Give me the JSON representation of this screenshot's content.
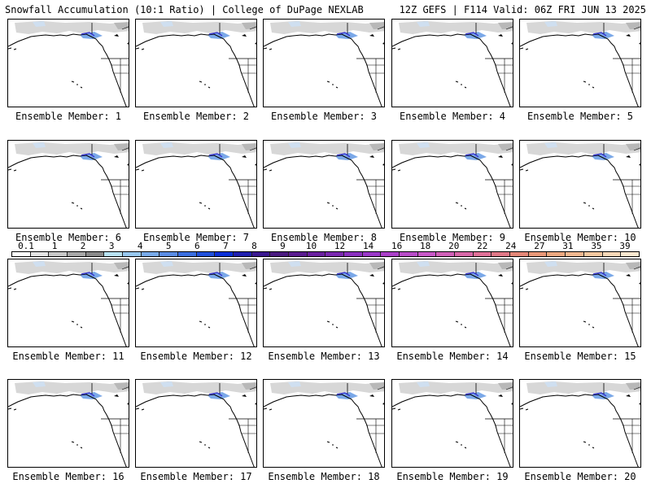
{
  "header": {
    "left": "Snowfall Accumulation (10:1 Ratio) | College of DuPage NEXLAB",
    "right": "12Z GEFS | F114 Valid: 06Z FRI JUN 13 2025"
  },
  "panels": [
    {
      "label": "Ensemble Member: 1"
    },
    {
      "label": "Ensemble Member: 2"
    },
    {
      "label": "Ensemble Member: 3"
    },
    {
      "label": "Ensemble Member: 4"
    },
    {
      "label": "Ensemble Member: 5"
    },
    {
      "label": "Ensemble Member: 6"
    },
    {
      "label": "Ensemble Member: 7"
    },
    {
      "label": "Ensemble Member: 8"
    },
    {
      "label": "Ensemble Member: 9"
    },
    {
      "label": "Ensemble Member: 10"
    },
    {
      "label": "Ensemble Member: 11"
    },
    {
      "label": "Ensemble Member: 12"
    },
    {
      "label": "Ensemble Member: 13"
    },
    {
      "label": "Ensemble Member: 14"
    },
    {
      "label": "Ensemble Member: 15"
    },
    {
      "label": "Ensemble Member: 16"
    },
    {
      "label": "Ensemble Member: 17"
    },
    {
      "label": "Ensemble Member: 18"
    },
    {
      "label": "Ensemble Member: 19"
    },
    {
      "label": "Ensemble Member: 20"
    }
  ],
  "colorbar": {
    "labels": [
      "0.1",
      "1",
      "2",
      "3",
      "4",
      "5",
      "6",
      "7",
      "8",
      "9",
      "10",
      "12",
      "14",
      "16",
      "18",
      "20",
      "22",
      "24",
      "27",
      "31",
      "35",
      "39"
    ],
    "colors": [
      "#ffffff",
      "#e4e4e4",
      "#c8c8c8",
      "#a8a8a8",
      "#8a8a8a",
      "#b8e2f2",
      "#98c8ef",
      "#78aaea",
      "#5a8ce4",
      "#3a6ee0",
      "#2050dc",
      "#0a30d8",
      "#2020b0",
      "#3a1890",
      "#4a1a80",
      "#5a1c90",
      "#6a20a0",
      "#7a28b0",
      "#8a30c0",
      "#9a38c8",
      "#aa40c8",
      "#b84cc8",
      "#c858c8",
      "#d060b8",
      "#d868a8",
      "#e07098",
      "#e07888",
      "#e48878",
      "#e89878",
      "#eca880",
      "#f0b890",
      "#f4c8a0",
      "#f8d8b8",
      "#fce8d0"
    ]
  }
}
